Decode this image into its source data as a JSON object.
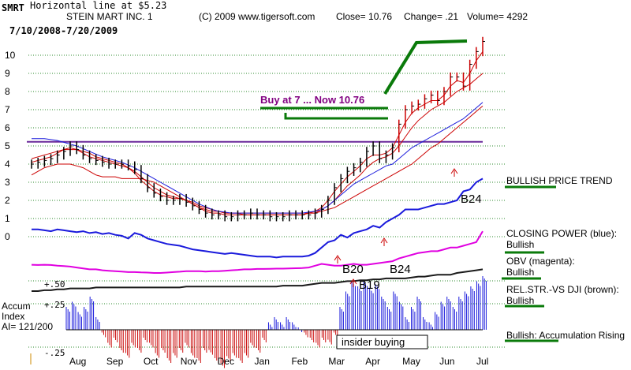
{
  "header": {
    "symbol": "SMRT",
    "line_note": "Horizontal line at $5.23",
    "company": "STEIN MART INC. 1",
    "copyright": "(C) 2009 www.tigersoft.com",
    "close": "Close=  10.76",
    "change": "Change= .21",
    "volume": "Volume= 4292",
    "date_range": "7/10/2008-7/20/2009"
  },
  "annotations": {
    "buy_note": "Buy at 7 ... Now 10.76",
    "b20": "B20",
    "b24_mid": "B24",
    "b19": "B19",
    "b24_right": "B24",
    "insider": "insider buying"
  },
  "right_labels": {
    "trend": "BULLISH PRICE TREND",
    "cp_title": "CLOSING POWER (blue):",
    "cp_value": "Bullish",
    "obv_title": "OBV (magenta):",
    "obv_value": "Bullish",
    "rel_title": "REL.STR.-VS DJI (brown):",
    "rel_value": "Bullish",
    "accum": "Bullish: Accumulation Rising"
  },
  "accum_labels": {
    "plus50": "+.50",
    "plus25": "+.25",
    "line1": "Accum",
    "line2": "Index",
    "ai": "AI= 121/200",
    "minus25": "-.25"
  },
  "colors": {
    "grid": "#2e8b2e",
    "price": "#000000",
    "ma_red": "#cc0000",
    "ma_blue": "#1a1adc",
    "closing_power": "#1a1adc",
    "obv": "#e000e0",
    "relstr": "#1a1a1a",
    "hline": "#6a2a9a",
    "accum_pos": "#1a1adc",
    "accum_neg": "#cc1010",
    "annotation": "#800080",
    "underline": "#0a7a0a"
  },
  "chart_data": {
    "type": "line",
    "title": "STEIN MART INC. 1",
    "x_labels": [
      "Aug",
      "Sep",
      "Oct",
      "Nov",
      "Dec",
      "Jan",
      "Feb",
      "Mar",
      "Apr",
      "May",
      "Jun",
      "Jul"
    ],
    "y_ticks": [
      0,
      1,
      2,
      3,
      4,
      5,
      6,
      7,
      8,
      9,
      10
    ],
    "ylim": [
      -0.5,
      10.8
    ],
    "horizontal_line": 5.23,
    "price_close": [
      4.0,
      4.1,
      4.2,
      4.3,
      4.5,
      4.7,
      5.0,
      4.8,
      4.5,
      4.3,
      4.2,
      4.1,
      4.0,
      4.0,
      4.0,
      3.9,
      3.7,
      3.2,
      2.7,
      2.4,
      2.2,
      2.0,
      2.0,
      2.1,
      1.9,
      1.7,
      1.5,
      1.3,
      1.2,
      1.2,
      1.1,
      1.1,
      1.2,
      1.2,
      1.3,
      1.2,
      1.2,
      1.1,
      1.1,
      1.1,
      1.2,
      1.2,
      1.2,
      1.2,
      1.3,
      1.5,
      2.0,
      2.7,
      3.2,
      3.6,
      3.8,
      4.1,
      4.7,
      5.0,
      4.3,
      4.5,
      4.9,
      6.2,
      7.0,
      7.2,
      7.3,
      7.6,
      7.8,
      7.5,
      8.0,
      8.8,
      8.8,
      8.3,
      9.5,
      10.2,
      10.76
    ],
    "ma_fast": [
      4.1,
      4.2,
      4.3,
      4.4,
      4.6,
      4.8,
      4.9,
      4.8,
      4.6,
      4.4,
      4.3,
      4.2,
      4.1,
      4.0,
      3.9,
      3.8,
      3.5,
      3.1,
      2.8,
      2.5,
      2.3,
      2.2,
      2.1,
      2.1,
      2.0,
      1.8,
      1.6,
      1.4,
      1.3,
      1.3,
      1.2,
      1.2,
      1.2,
      1.2,
      1.2,
      1.2,
      1.2,
      1.2,
      1.2,
      1.2,
      1.2,
      1.2,
      1.2,
      1.3,
      1.4,
      1.6,
      2.0,
      2.5,
      2.9,
      3.3,
      3.6,
      3.9,
      4.3,
      4.5,
      4.5,
      4.6,
      4.9,
      5.6,
      6.3,
      6.8,
      7.1,
      7.3,
      7.5,
      7.5,
      7.8,
      8.3,
      8.6,
      8.5,
      9.0,
      9.7,
      10.2
    ],
    "ma_mid": [
      4.3,
      4.4,
      4.5,
      4.6,
      4.7,
      4.8,
      4.8,
      4.8,
      4.7,
      4.6,
      4.4,
      4.3,
      4.2,
      4.1,
      4.0,
      3.8,
      3.6,
      3.3,
      3.0,
      2.7,
      2.5,
      2.3,
      2.2,
      2.1,
      2.0,
      1.9,
      1.7,
      1.6,
      1.5,
      1.4,
      1.3,
      1.3,
      1.3,
      1.2,
      1.2,
      1.2,
      1.2,
      1.2,
      1.2,
      1.2,
      1.2,
      1.2,
      1.2,
      1.3,
      1.3,
      1.5,
      1.7,
      2.0,
      2.4,
      2.8,
      3.1,
      3.4,
      3.8,
      4.1,
      4.3,
      4.4,
      4.6,
      5.0,
      5.5,
      6.0,
      6.4,
      6.7,
      7.0,
      7.2,
      7.4,
      7.7,
      8.0,
      8.2,
      8.4,
      8.7,
      9.0
    ],
    "ma_slow": [
      3.4,
      3.6,
      3.8,
      3.9,
      4.0,
      4.0,
      4.0,
      3.9,
      3.8,
      3.6,
      3.4,
      3.3,
      3.3,
      3.3,
      3.2,
      3.2,
      3.2,
      3.2,
      3.1,
      3.0,
      2.8,
      2.6,
      2.4,
      2.2,
      2.0,
      1.8,
      1.6,
      1.5,
      1.4,
      1.4,
      1.3,
      1.3,
      1.3,
      1.3,
      1.3,
      1.3,
      1.3,
      1.3,
      1.3,
      1.3,
      1.3,
      1.3,
      1.3,
      1.3,
      1.3,
      1.4,
      1.5,
      1.6,
      1.8,
      2.0,
      2.2,
      2.4,
      2.6,
      2.8,
      3.0,
      3.2,
      3.4,
      3.6,
      3.8,
      4.0,
      4.3,
      4.6,
      4.9,
      5.1,
      5.4,
      5.7,
      6.0,
      6.3,
      6.6,
      6.9,
      7.2
    ],
    "ma_blue": [
      5.4,
      5.4,
      5.4,
      5.35,
      5.3,
      5.2,
      5.1,
      5.0,
      4.85,
      4.7,
      4.55,
      4.4,
      4.3,
      4.2,
      4.1,
      3.95,
      3.8,
      3.6,
      3.4,
      3.2,
      3.0,
      2.8,
      2.6,
      2.4,
      2.2,
      2.0,
      1.8,
      1.65,
      1.5,
      1.4,
      1.35,
      1.3,
      1.3,
      1.3,
      1.3,
      1.3,
      1.3,
      1.3,
      1.3,
      1.3,
      1.3,
      1.3,
      1.3,
      1.35,
      1.4,
      1.5,
      1.7,
      2.0,
      2.3,
      2.6,
      2.9,
      3.1,
      3.3,
      3.5,
      3.7,
      3.9,
      4.0,
      4.3,
      4.6,
      4.9,
      5.1,
      5.3,
      5.5,
      5.7,
      5.9,
      6.1,
      6.3,
      6.5,
      6.8,
      7.1,
      7.4
    ],
    "closing_power": [
      0.4,
      0.4,
      0.35,
      0.3,
      0.4,
      0.35,
      0.3,
      0.25,
      0.3,
      0.2,
      0.25,
      0.15,
      0.2,
      0.1,
      0.05,
      -0.1,
      0.2,
      0.1,
      -0.1,
      -0.2,
      -0.3,
      -0.4,
      -0.45,
      -0.5,
      -0.6,
      -0.7,
      -0.75,
      -0.8,
      -0.85,
      -0.9,
      -0.95,
      -0.9,
      -0.95,
      -1.0,
      -1.05,
      -1.1,
      -1.1,
      -1.1,
      -1.15,
      -1.1,
      -1.1,
      -1.1,
      -1.1,
      -1.05,
      -0.9,
      -0.6,
      -0.3,
      -0.2,
      0.1,
      -0.05,
      0.2,
      0.3,
      0.4,
      0.6,
      0.5,
      0.8,
      1.0,
      1.2,
      1.5,
      1.5,
      1.5,
      1.6,
      1.7,
      1.8,
      1.8,
      1.9,
      2.0,
      2.5,
      2.6,
      3.0,
      3.2
    ],
    "obv": [
      -1.55,
      -1.56,
      -1.55,
      -1.56,
      -1.6,
      -1.62,
      -1.65,
      -1.7,
      -1.75,
      -1.8,
      -1.8,
      -1.85,
      -1.88,
      -1.9,
      -1.92,
      -1.95,
      -1.95,
      -1.97,
      -1.98,
      -2.0,
      -2.0,
      -1.98,
      -1.95,
      -1.93,
      -1.9,
      -1.9,
      -1.9,
      -1.92,
      -1.9,
      -1.9,
      -1.88,
      -1.85,
      -1.83,
      -1.8,
      -1.8,
      -1.78,
      -1.78,
      -1.77,
      -1.76,
      -1.76,
      -1.75,
      -1.74,
      -1.73,
      -1.7,
      -1.6,
      -1.5,
      -1.55,
      -1.6,
      -1.6,
      -1.55,
      -1.5,
      -1.55,
      -1.55,
      -1.5,
      -1.45,
      -1.4,
      -1.35,
      -1.2,
      -1.1,
      -1.0,
      -0.9,
      -0.85,
      -0.8,
      -0.8,
      -0.7,
      -0.6,
      -0.6,
      -0.5,
      -0.4,
      -0.3,
      0.3
    ],
    "relstr": [
      -3.0,
      -3.0,
      -2.95,
      -2.95,
      -2.9,
      -2.9,
      -2.85,
      -2.85,
      -2.85,
      -2.85,
      -2.8,
      -2.8,
      -2.8,
      -2.8,
      -2.8,
      -2.8,
      -2.8,
      -2.8,
      -2.8,
      -2.8,
      -2.8,
      -2.8,
      -2.8,
      -2.8,
      -2.75,
      -2.75,
      -2.75,
      -2.75,
      -2.75,
      -2.75,
      -2.75,
      -2.75,
      -2.75,
      -2.75,
      -2.75,
      -2.75,
      -2.75,
      -2.75,
      -2.75,
      -2.7,
      -2.7,
      -2.7,
      -2.7,
      -2.65,
      -2.6,
      -2.55,
      -2.55,
      -2.55,
      -2.5,
      -2.45,
      -2.45,
      -2.4,
      -2.4,
      -2.35,
      -2.35,
      -2.3,
      -2.3,
      -2.3,
      -2.3,
      -2.25,
      -2.2,
      -2.2,
      -2.15,
      -2.1,
      -2.1,
      -2.1,
      -2.0,
      -1.95,
      -1.9,
      -1.85,
      -1.8
    ],
    "accum_index": [
      0.2,
      0.25,
      0.15,
      0.2,
      0.3,
      0.1,
      -0.05,
      -0.15,
      -0.1,
      -0.2,
      -0.25,
      -0.15,
      -0.2,
      -0.1,
      -0.15,
      -0.25,
      -0.2,
      -0.3,
      -0.25,
      -0.2,
      -0.15,
      -0.25,
      -0.3,
      -0.2,
      -0.22,
      -0.3,
      -0.35,
      -0.28,
      -0.25,
      -0.3,
      -0.25,
      -0.15,
      -0.2,
      -0.1,
      0.05,
      0.1,
      0.05,
      0.1,
      0.05,
      0.0,
      -0.05,
      -0.1,
      -0.15,
      -0.1,
      -0.12,
      -0.05,
      0.2,
      0.35,
      0.45,
      0.4,
      0.45,
      0.38,
      0.42,
      0.3,
      0.2,
      0.35,
      0.25,
      0.1,
      0.2,
      0.3,
      0.1,
      0.05,
      0.15,
      0.25,
      0.3,
      0.2,
      0.3,
      0.35,
      0.4,
      0.45,
      0.5
    ]
  }
}
